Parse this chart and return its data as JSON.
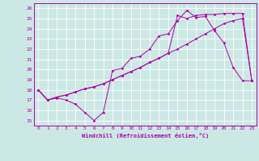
{
  "xlabel": "Windchill (Refroidissement éolien,°C)",
  "bg_color": "#cce8e4",
  "line_color": "#aa00aa",
  "grid_color": "#ffffff",
  "xlim": [
    -0.5,
    23.5
  ],
  "ylim": [
    14.5,
    26.5
  ],
  "yticks": [
    15,
    16,
    17,
    18,
    19,
    20,
    21,
    22,
    23,
    24,
    25,
    26
  ],
  "xticks": [
    0,
    1,
    2,
    3,
    4,
    5,
    6,
    7,
    8,
    9,
    10,
    11,
    12,
    13,
    14,
    15,
    16,
    17,
    18,
    19,
    20,
    21,
    22,
    23
  ],
  "line1_x": [
    0,
    1,
    2,
    3,
    4,
    5,
    6,
    7,
    8,
    9,
    10,
    11,
    12,
    13,
    14,
    15,
    16,
    17,
    18,
    19,
    20,
    21,
    22,
    23
  ],
  "line1_y": [
    18.0,
    17.0,
    17.2,
    17.0,
    16.6,
    15.8,
    15.0,
    15.8,
    19.9,
    20.1,
    21.1,
    21.3,
    22.0,
    23.3,
    23.5,
    24.8,
    25.8,
    25.1,
    25.2,
    23.8,
    22.6,
    20.2,
    18.9,
    18.9
  ],
  "line2_x": [
    0,
    1,
    2,
    3,
    4,
    5,
    6,
    7,
    8,
    9,
    10,
    11,
    12,
    13,
    14,
    15,
    16,
    17,
    18,
    19,
    20,
    21,
    22,
    23
  ],
  "line2_y": [
    18.0,
    17.0,
    17.3,
    17.5,
    17.8,
    18.1,
    18.3,
    18.6,
    19.0,
    19.4,
    19.8,
    20.2,
    20.7,
    21.1,
    21.6,
    25.3,
    25.0,
    25.3,
    25.4,
    25.4,
    25.5,
    25.5,
    25.5,
    18.9
  ],
  "line3_x": [
    0,
    1,
    2,
    3,
    4,
    5,
    6,
    7,
    8,
    9,
    10,
    11,
    12,
    13,
    14,
    15,
    16,
    17,
    18,
    19,
    20,
    21,
    22,
    23
  ],
  "line3_y": [
    18.0,
    17.0,
    17.3,
    17.5,
    17.8,
    18.1,
    18.3,
    18.6,
    19.0,
    19.4,
    19.8,
    20.2,
    20.7,
    21.1,
    21.6,
    22.0,
    22.5,
    23.0,
    23.5,
    24.0,
    24.5,
    24.8,
    25.0,
    18.9
  ]
}
